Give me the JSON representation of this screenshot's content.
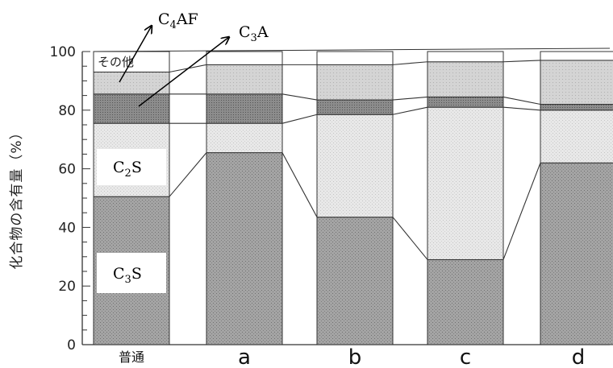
{
  "chart_data": {
    "type": "bar",
    "stacked": true,
    "categories": [
      "普通",
      "a",
      "b",
      "c",
      "d"
    ],
    "ylabel": "化合物の含有量（%）",
    "ylim": [
      0,
      100
    ],
    "yticks": [
      0,
      20,
      40,
      60,
      80,
      100
    ],
    "series": [
      {
        "name": "C3S",
        "values": [
          50.5,
          65.5,
          43.5,
          29.0,
          62.0
        ]
      },
      {
        "name": "C2S",
        "values": [
          25.0,
          10.0,
          35.0,
          52.0,
          18.0
        ]
      },
      {
        "name": "C3A",
        "values": [
          10.0,
          10.0,
          5.0,
          3.5,
          2.0
        ]
      },
      {
        "name": "C4AF",
        "values": [
          7.5,
          10.0,
          12.0,
          12.0,
          15.0
        ]
      },
      {
        "name": "その他",
        "values": [
          7.0,
          4.5,
          4.5,
          3.5,
          3.0
        ]
      }
    ],
    "colors": {
      "C3S": "#9e9e9e",
      "C2S": "#e6e6e6",
      "C3A": "#8a8a8a",
      "C4AF": "#cfcfcf",
      "その他": "#ffffff"
    },
    "annotations": {
      "other": "その他",
      "c4af": {
        "base": "C",
        "sub": "4",
        "rest": "AF"
      },
      "c3a": {
        "base": "C",
        "sub": "3",
        "rest": "A"
      },
      "c2s": {
        "base": "C",
        "sub": "2",
        "rest": "S"
      },
      "c3s": {
        "base": "C",
        "sub": "3",
        "rest": "S"
      }
    },
    "grid": false,
    "legend": "none"
  }
}
